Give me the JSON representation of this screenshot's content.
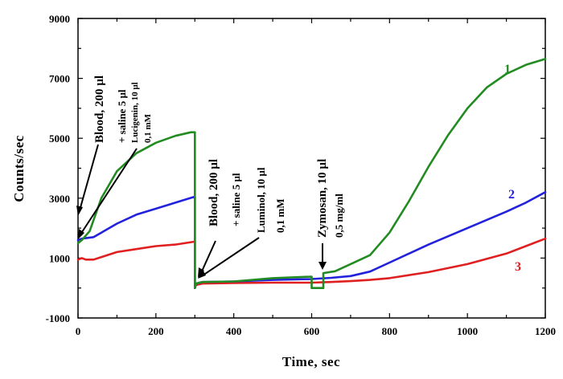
{
  "chart_data": {
    "type": "line",
    "xlabel": "Time, sec",
    "ylabel": "Counts/sec",
    "xlim": [
      0,
      1200
    ],
    "ylim": [
      -1000,
      9000
    ],
    "xticks": [
      "0",
      "200",
      "400",
      "600",
      "800",
      "1000",
      "1200"
    ],
    "yticks": [
      "-1000",
      "1000",
      "3000",
      "5000",
      "7000",
      "9000"
    ],
    "grid": false,
    "annotations": {
      "blood1": "Blood, 200 µl",
      "saline1": "+ saline 5 µl",
      "lucigenin_a": "Lucigenin, 10 µl",
      "lucigenin_b": "0,1 mM",
      "blood2": "Blood, 200 µl",
      "saline2": "+ saline 5 µl",
      "luminol_a": "Luminol, 10 µl",
      "luminol_b": "0,1 mM",
      "zymosan_a": "Zymosan, 10 µl",
      "zymosan_b": "0,5 mg/ml"
    },
    "series": [
      {
        "name": "1",
        "color": "#228b22",
        "x": [
          0,
          10,
          30,
          60,
          100,
          150,
          200,
          250,
          290,
          298,
          300,
          300,
          303,
          320,
          400,
          500,
          600,
          600,
          630,
          630,
          660,
          700,
          750,
          800,
          850,
          900,
          950,
          1000,
          1050,
          1100,
          1150,
          1200
        ],
        "y": [
          1500,
          1600,
          1900,
          3000,
          3900,
          4500,
          4850,
          5080,
          5200,
          5200,
          5200,
          0,
          150,
          200,
          220,
          330,
          380,
          0,
          0,
          500,
          560,
          800,
          1100,
          1850,
          2900,
          4050,
          5100,
          6000,
          6700,
          7150,
          7450,
          7650
        ]
      },
      {
        "name": "2",
        "color": "#2222dd",
        "x": [
          0,
          10,
          40,
          100,
          150,
          200,
          250,
          300,
          300,
          303,
          320,
          400,
          500,
          600,
          650,
          700,
          750,
          800,
          900,
          1000,
          1100,
          1150,
          1200
        ],
        "y": [
          1600,
          1650,
          1700,
          2150,
          2450,
          2650,
          2850,
          3050,
          0,
          150,
          200,
          220,
          270,
          300,
          340,
          400,
          550,
          850,
          1450,
          2000,
          2550,
          2850,
          3200
        ]
      },
      {
        "name": "3",
        "color": "#e02020",
        "x": [
          0,
          10,
          20,
          40,
          100,
          150,
          200,
          250,
          300,
          300,
          303,
          320,
          400,
          500,
          600,
          650,
          700,
          750,
          800,
          900,
          1000,
          1100,
          1150,
          1200
        ],
        "y": [
          950,
          1000,
          950,
          950,
          1200,
          1300,
          1400,
          1450,
          1550,
          0,
          100,
          150,
          170,
          180,
          180,
          200,
          230,
          270,
          330,
          530,
          800,
          1150,
          1400,
          1650
        ]
      }
    ]
  }
}
